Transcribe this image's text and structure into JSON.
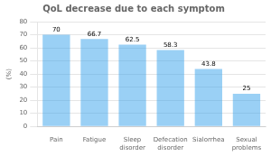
{
  "chart_data": {
    "type": "bar",
    "title": "QoL decrease due to each symptom",
    "ylabel": "(%)",
    "categories": [
      "Pain",
      "Fatigue",
      "Sleep disorder",
      "Defecation\ndisorder",
      "Sialorrhea",
      "Sexual problems"
    ],
    "values": [
      70,
      66.7,
      62.5,
      58.3,
      43.8,
      25
    ],
    "ylim": [
      0,
      80
    ],
    "yticks": [
      0,
      10,
      20,
      30,
      40,
      50,
      60,
      70,
      80
    ],
    "grid": true,
    "data_labels": true
  }
}
